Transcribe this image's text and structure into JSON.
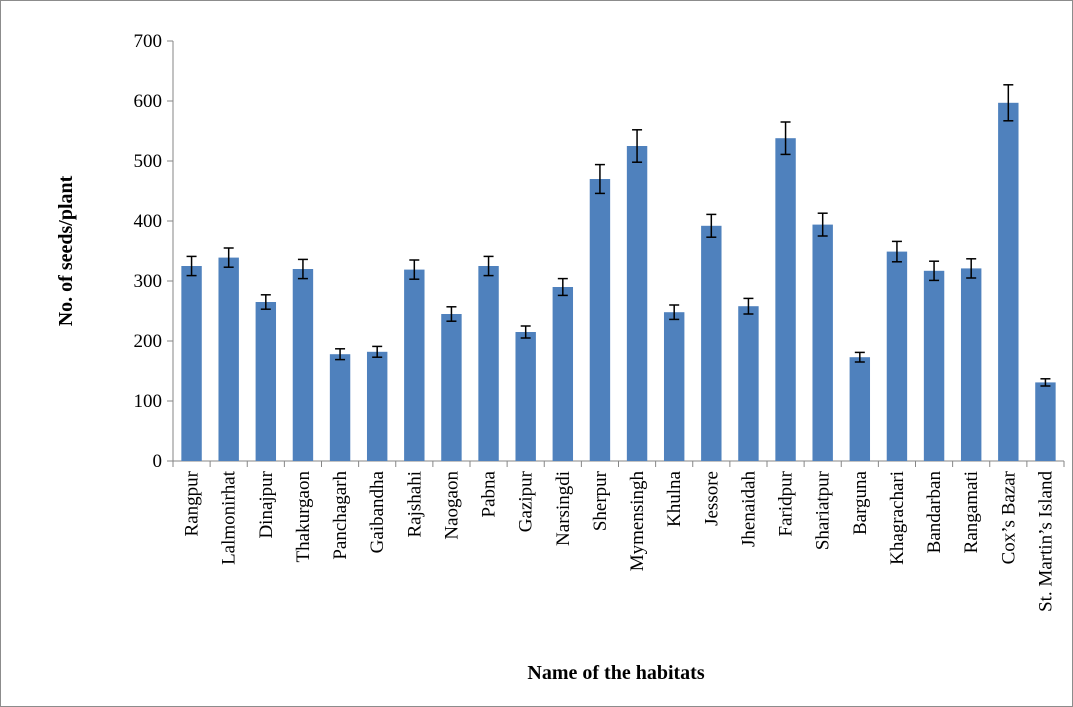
{
  "chart_data": {
    "type": "bar",
    "title": "",
    "xlabel": "Name of the habitats",
    "ylabel": "No. of seeds/plant",
    "ylim": [
      0,
      700
    ],
    "yticks": [
      0,
      100,
      200,
      300,
      400,
      500,
      600,
      700
    ],
    "grid": false,
    "legend": "none",
    "bar_color": "#4f81bd",
    "categories": [
      "Rangpur",
      "Lalmonirhat",
      "Dinajpur",
      "Thakurgaon",
      "Panchagarh",
      "Gaibandha",
      "Rajshahi",
      "Naogaon",
      "Pabna",
      "Gazipur",
      "Narsingdi",
      "Sherpur",
      "Mymensingh",
      "Khulna",
      "Jessore",
      "Jhenaidah",
      "Faridpur",
      "Shariatpur",
      "Barguna",
      "Khagrachari",
      "Bandarban",
      "Rangamati",
      "Cox’s Bazar",
      "St. Martin’s Island"
    ],
    "values": [
      325,
      339,
      265,
      320,
      178,
      182,
      319,
      245,
      325,
      215,
      290,
      470,
      525,
      248,
      392,
      258,
      538,
      394,
      173,
      349,
      317,
      321,
      597,
      131
    ],
    "errors": [
      16,
      16,
      12,
      16,
      9,
      9,
      16,
      12,
      16,
      10,
      14,
      24,
      27,
      12,
      19,
      13,
      27,
      19,
      8,
      17,
      16,
      16,
      30,
      6
    ]
  }
}
